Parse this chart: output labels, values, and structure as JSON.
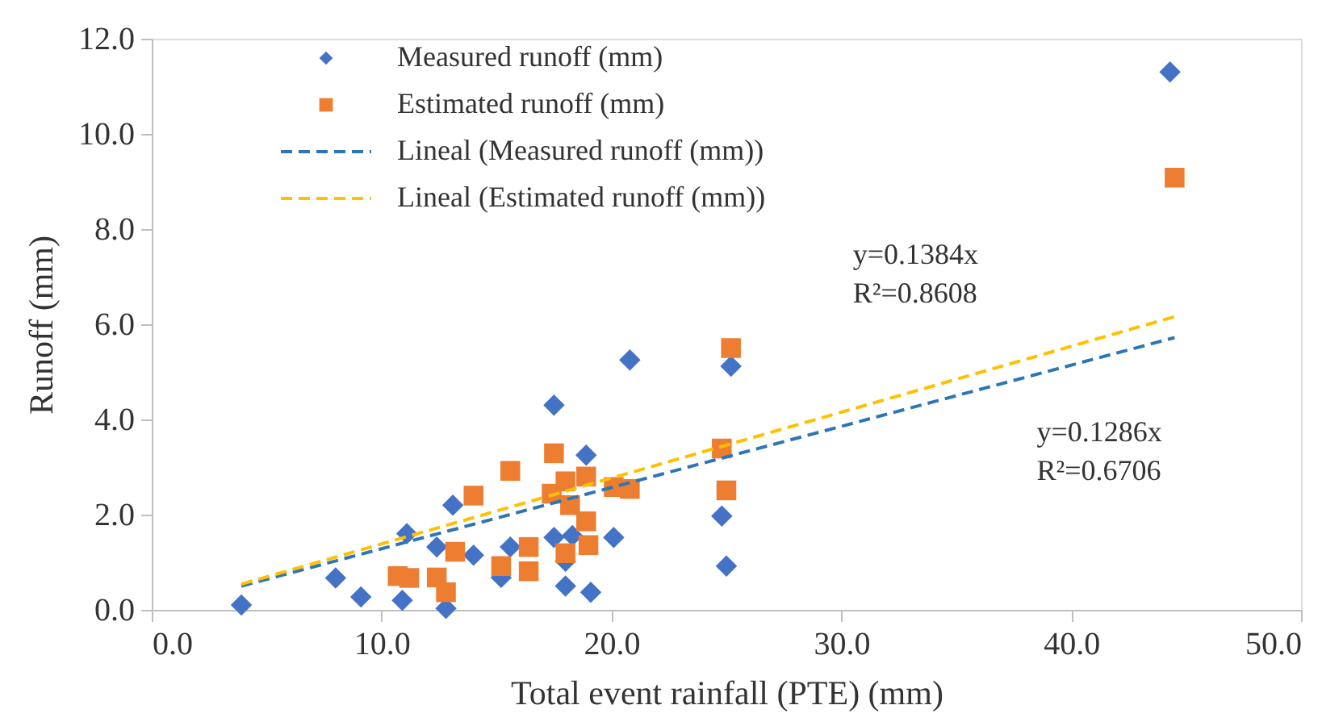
{
  "chart_data": {
    "type": "scatter",
    "xlabel": "Total event rainfall (PTE) (mm)",
    "ylabel": "Runoff  (mm)",
    "xlim": [
      0,
      50
    ],
    "ylim": [
      0,
      12
    ],
    "xticks": [
      {
        "value": 0,
        "label": "0.0"
      },
      {
        "value": 10,
        "label": "10.0"
      },
      {
        "value": 20,
        "label": "20.0"
      },
      {
        "value": 30,
        "label": "30.0"
      },
      {
        "value": 40,
        "label": "40.0"
      },
      {
        "value": 50,
        "label": "50.0"
      }
    ],
    "yticks": [
      {
        "value": 0,
        "label": "0.0"
      },
      {
        "value": 2,
        "label": "2.0"
      },
      {
        "value": 4,
        "label": "4.0"
      },
      {
        "value": 6,
        "label": "6.0"
      },
      {
        "value": 8,
        "label": "8.0"
      },
      {
        "value": 10,
        "label": "10.0"
      },
      {
        "value": 12,
        "label": "12.0"
      }
    ],
    "grid": false,
    "legend": "top left",
    "series": [
      {
        "name": "Measured runoff (mm)",
        "marker": "diamond",
        "color": "#4472c4",
        "x": [
          3.9,
          8.0,
          9.1,
          11.1,
          10.9,
          12.4,
          12.8,
          13.1,
          20.8,
          25.2,
          17.5,
          18.9,
          14.0,
          15.6,
          17.5,
          18.3,
          20.1,
          15.2,
          18.0,
          18.0,
          19.1,
          24.8,
          25.0,
          44.3
        ],
        "values": [
          0.1,
          0.67,
          0.27,
          1.6,
          0.2,
          1.32,
          0.03,
          2.2,
          5.25,
          5.12,
          4.3,
          3.25,
          1.15,
          1.32,
          1.52,
          1.56,
          1.52,
          0.68,
          1.02,
          0.5,
          0.37,
          1.97,
          0.92,
          11.3
        ]
      },
      {
        "name": "Estimated runoff (mm)",
        "marker": "square",
        "color": "#ed7d31",
        "x": [
          10.7,
          11.2,
          12.4,
          12.8,
          13.2,
          25.2,
          17.5,
          15.6,
          14.0,
          18.0,
          18.9,
          17.4,
          18.2,
          20.1,
          20.8,
          18.9,
          19.0,
          18.0,
          16.4,
          16.4,
          15.2,
          24.8,
          25.0,
          44.5
        ],
        "values": [
          0.71,
          0.67,
          0.68,
          0.37,
          1.22,
          5.5,
          3.29,
          2.92,
          2.4,
          2.7,
          2.8,
          2.44,
          2.2,
          2.58,
          2.54,
          1.86,
          1.36,
          1.19,
          1.32,
          0.81,
          0.92,
          3.39,
          2.51,
          9.08
        ]
      },
      {
        "name": "Lineal (Measured runoff (mm))",
        "type": "line",
        "line_style": "dashed",
        "color": "#2e75b6",
        "x": [
          3.9,
          44.5
        ],
        "values": [
          0.5,
          5.72
        ]
      },
      {
        "name": "Lineal (Estimated runoff (mm))",
        "type": "line",
        "line_style": "dashed",
        "color": "#ffc000",
        "x": [
          3.9,
          44.5
        ],
        "values": [
          0.54,
          6.16
        ]
      }
    ],
    "annotations": [
      "y=0.1384x\nR²=0.8608",
      "y=0.1286x\nR²=0.6706"
    ]
  }
}
